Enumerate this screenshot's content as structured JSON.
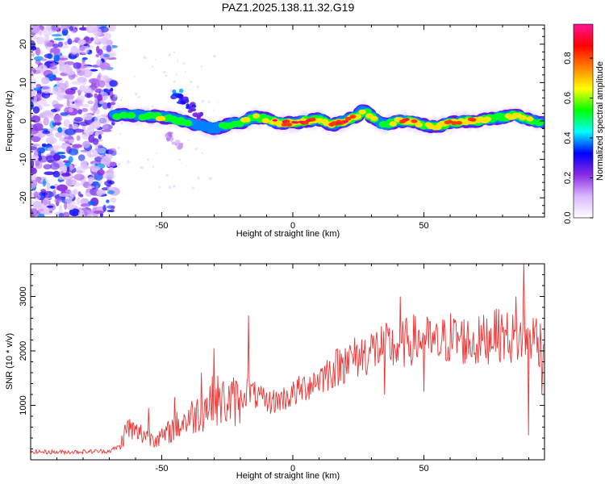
{
  "page_title": "PAZ1.2025.138.11.32.G19",
  "chart_data": [
    {
      "type": "heatmap",
      "title": "PAZ1.2025.138.11.32.G19",
      "xlabel": "Height of straight line (km)",
      "ylabel": "Frequency (Hz)",
      "xlim": [
        -100,
        96
      ],
      "ylim": [
        -25,
        25
      ],
      "x_ticks": [
        -50,
        0,
        50
      ],
      "y_ticks": [
        -20,
        -10,
        0,
        10,
        20
      ],
      "colorbar": {
        "label": "Normalized spectral amplitude",
        "range": [
          0,
          0.97
        ],
        "ticks": [
          0.0,
          0.2,
          0.4,
          0.6,
          0.8
        ],
        "colors": [
          "#ffffff",
          "#d9b8ff",
          "#8a2be2",
          "#0000ff",
          "#00ffff",
          "#00ff00",
          "#ffff00",
          "#ff8000",
          "#ff0000",
          "#ff1493"
        ]
      },
      "noise_region_x": [
        -100,
        -68
      ],
      "trace": [
        {
          "x": -68,
          "y": 1.5,
          "a": 0.45
        },
        {
          "x": -60,
          "y": 1.5,
          "a": 0.5
        },
        {
          "x": -50,
          "y": 1.0,
          "a": 0.6
        },
        {
          "x": -45,
          "y": 0.5,
          "a": 0.55
        },
        {
          "x": -40,
          "y": -0.5,
          "a": 0.45
        },
        {
          "x": -35,
          "y": -1.0,
          "a": 0.45
        },
        {
          "x": -30,
          "y": -2.0,
          "a": 0.4
        },
        {
          "x": -25,
          "y": -1.0,
          "a": 0.55
        },
        {
          "x": -20,
          "y": -0.5,
          "a": 0.6
        },
        {
          "x": -15,
          "y": 1.0,
          "a": 0.6
        },
        {
          "x": -10,
          "y": 0.5,
          "a": 0.7
        },
        {
          "x": -5,
          "y": -0.5,
          "a": 0.9
        },
        {
          "x": 0,
          "y": -0.5,
          "a": 0.85
        },
        {
          "x": 5,
          "y": 0.0,
          "a": 0.9
        },
        {
          "x": 10,
          "y": 0.5,
          "a": 0.7
        },
        {
          "x": 15,
          "y": -1.0,
          "a": 0.85
        },
        {
          "x": 20,
          "y": 0.0,
          "a": 0.8
        },
        {
          "x": 25,
          "y": 1.5,
          "a": 0.7
        },
        {
          "x": 27,
          "y": 3.0,
          "a": 0.5
        },
        {
          "x": 30,
          "y": 1.0,
          "a": 0.6
        },
        {
          "x": 35,
          "y": -1.0,
          "a": 0.6
        },
        {
          "x": 40,
          "y": 0.0,
          "a": 0.65
        },
        {
          "x": 45,
          "y": 0.0,
          "a": 0.9
        },
        {
          "x": 50,
          "y": -1.0,
          "a": 0.6
        },
        {
          "x": 55,
          "y": -1.5,
          "a": 0.6
        },
        {
          "x": 60,
          "y": -0.5,
          "a": 0.75
        },
        {
          "x": 65,
          "y": 0.0,
          "a": 0.85
        },
        {
          "x": 70,
          "y": 0.0,
          "a": 0.75
        },
        {
          "x": 75,
          "y": 0.5,
          "a": 0.65
        },
        {
          "x": 80,
          "y": 1.0,
          "a": 0.7
        },
        {
          "x": 85,
          "y": 1.5,
          "a": 0.7
        },
        {
          "x": 90,
          "y": 0.5,
          "a": 0.6
        },
        {
          "x": 96,
          "y": -0.5,
          "a": 0.4
        }
      ],
      "branch": [
        {
          "x": -44,
          "y": 7.0,
          "a": 0.35
        },
        {
          "x": -42,
          "y": 5.5,
          "a": 0.3
        },
        {
          "x": -39,
          "y": 3.5,
          "a": 0.3
        },
        {
          "x": -36,
          "y": 1.5,
          "a": 0.25
        },
        {
          "x": -47,
          "y": -4.0,
          "a": 0.15
        },
        {
          "x": -44,
          "y": -6.0,
          "a": 0.12
        }
      ]
    },
    {
      "type": "line",
      "xlabel": "Height of straight line (km)",
      "ylabel": "SNR (10 * v/v)",
      "xlim": [
        -100,
        96
      ],
      "ylim": [
        0,
        3600
      ],
      "x_ticks": [
        -50,
        0,
        50
      ],
      "y_ticks": [
        1000,
        2000,
        3000
      ],
      "color": "#ee3333",
      "x": [
        -100,
        -90,
        -80,
        -70,
        -66,
        -63,
        -60,
        -55,
        -50,
        -45,
        -40,
        -35,
        -30,
        -25,
        -20,
        -17,
        -15,
        -10,
        -5,
        0,
        5,
        10,
        15,
        20,
        25,
        30,
        35,
        40,
        45,
        50,
        55,
        60,
        65,
        70,
        75,
        80,
        85,
        90,
        96
      ],
      "y": [
        150,
        140,
        150,
        160,
        250,
        600,
        500,
        450,
        400,
        600,
        750,
        900,
        1100,
        1050,
        1100,
        1300,
        1200,
        1050,
        1100,
        1200,
        1350,
        1500,
        1650,
        1800,
        1900,
        2000,
        2100,
        2050,
        2200,
        2200,
        2100,
        2250,
        2200,
        2150,
        2250,
        2300,
        2200,
        2300,
        2100
      ],
      "spikes": [
        {
          "x": -55,
          "y": 950
        },
        {
          "x": -45,
          "y": 1150
        },
        {
          "x": -35,
          "y": 1600
        },
        {
          "x": -30,
          "y": 2050
        },
        {
          "x": -17,
          "y": 2650
        },
        {
          "x": 20,
          "y": 2050
        },
        {
          "x": 30,
          "y": 2300
        },
        {
          "x": 41,
          "y": 3000
        },
        {
          "x": 77,
          "y": 2750
        },
        {
          "x": 85,
          "y": 3000
        },
        {
          "x": 88,
          "y": 3650
        },
        {
          "x": 93,
          "y": 2600
        }
      ],
      "dips": [
        {
          "x": 35,
          "y": 1200
        },
        {
          "x": 50,
          "y": 1250
        },
        {
          "x": 90,
          "y": 450
        },
        {
          "x": 95,
          "y": 1200
        }
      ]
    }
  ]
}
